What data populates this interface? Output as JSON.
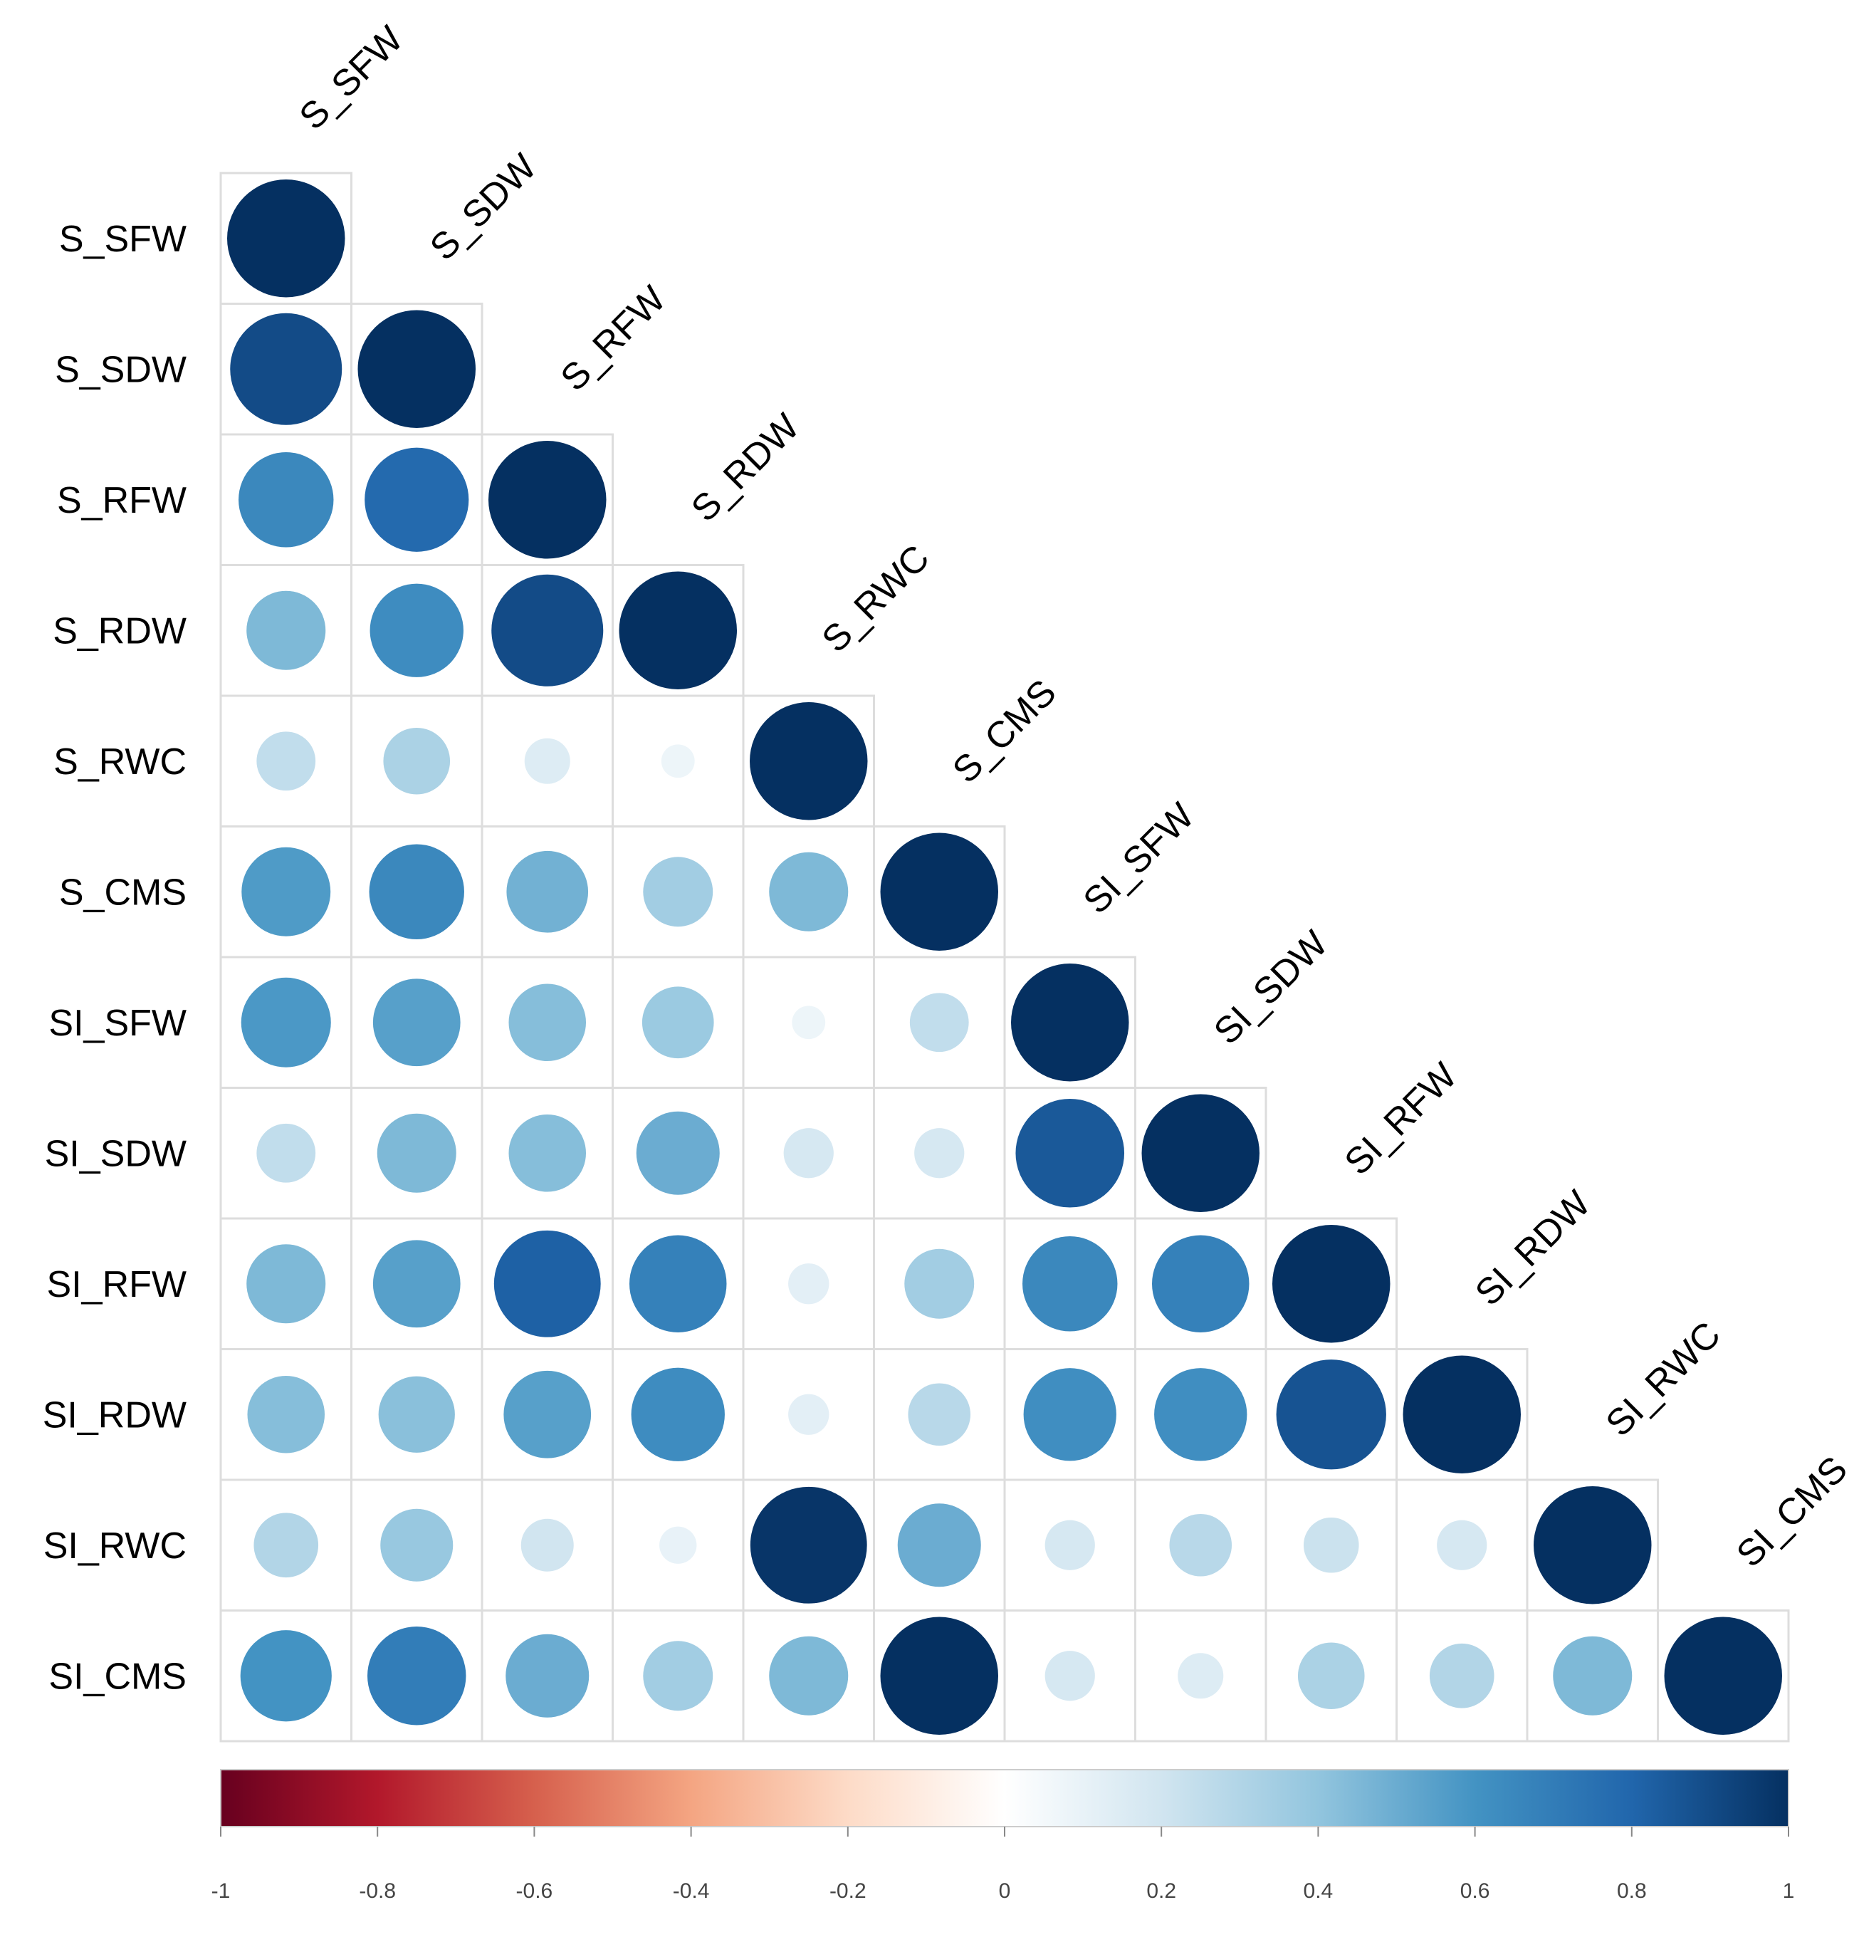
{
  "chart_data": {
    "type": "heatmap",
    "title": "",
    "variables": [
      "S_SFW",
      "S_SDW",
      "S_RFW",
      "S_RDW",
      "S_RWC",
      "S_CMS",
      "SI_SFW",
      "SI_SDW",
      "SI_RFW",
      "SI_RDW",
      "SI_RWC",
      "SI_CMS"
    ],
    "layout": "lower-triangular",
    "method": "circle",
    "matrix": [
      [
        1.0
      ],
      [
        0.9,
        1.0
      ],
      [
        0.65,
        0.78,
        1.0
      ],
      [
        0.45,
        0.63,
        0.9,
        1.0
      ],
      [
        0.25,
        0.32,
        0.15,
        0.08,
        1.0
      ],
      [
        0.57,
        0.65,
        0.48,
        0.35,
        0.45,
        1.0
      ],
      [
        0.58,
        0.55,
        0.43,
        0.37,
        0.08,
        0.25,
        1.0
      ],
      [
        0.25,
        0.45,
        0.43,
        0.5,
        0.18,
        0.18,
        0.85,
        1.0
      ],
      [
        0.45,
        0.55,
        0.82,
        0.68,
        0.12,
        0.35,
        0.65,
        0.68,
        1.0
      ],
      [
        0.43,
        0.42,
        0.55,
        0.63,
        0.12,
        0.28,
        0.62,
        0.62,
        0.87,
        1.0
      ],
      [
        0.3,
        0.38,
        0.2,
        0.1,
        0.98,
        0.5,
        0.18,
        0.28,
        0.22,
        0.18,
        1.0
      ],
      [
        0.6,
        0.7,
        0.5,
        0.35,
        0.45,
        1.0,
        0.18,
        0.15,
        0.32,
        0.3,
        0.45,
        1.0
      ]
    ],
    "colorbar": {
      "range": [
        -1,
        1
      ],
      "ticks": [
        "-1",
        "-0.8",
        "-0.6",
        "-0.4",
        "-0.2",
        "0",
        "0.2",
        "0.4",
        "0.6",
        "0.8",
        "1"
      ],
      "tick_values": [
        -1,
        -0.8,
        -0.6,
        -0.4,
        -0.2,
        0,
        0.2,
        0.4,
        0.6,
        0.8,
        1
      ],
      "colors": [
        "#67001f",
        "#b2182b",
        "#d6604d",
        "#f4a582",
        "#fddbc7",
        "#ffffff",
        "#d1e5f0",
        "#92c5de",
        "#4393c3",
        "#2166ac",
        "#053061"
      ],
      "placement": "bottom"
    }
  }
}
